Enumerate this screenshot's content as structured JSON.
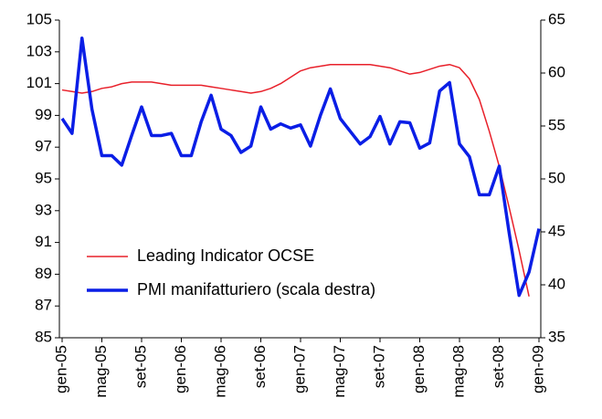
{
  "chart_data": {
    "type": "line",
    "categories": [
      "gen-05",
      null,
      null,
      null,
      "mag-05",
      null,
      null,
      null,
      "set-05",
      null,
      null,
      null,
      "gen-06",
      null,
      null,
      null,
      "mag-06",
      null,
      null,
      null,
      "set-06",
      null,
      null,
      null,
      "gen-07",
      null,
      null,
      null,
      "mag-07",
      null,
      null,
      null,
      "set-07",
      null,
      null,
      null,
      "gen-08",
      null,
      null,
      null,
      "mag-08",
      null,
      null,
      null,
      "set-08",
      null,
      null,
      null,
      "gen-09"
    ],
    "series": [
      {
        "name": "Leading Indicator OCSE",
        "color": "#e8202a",
        "axis": "y",
        "values": [
          100.6,
          100.5,
          100.4,
          100.5,
          100.7,
          100.8,
          101.0,
          101.1,
          101.1,
          101.1,
          101.0,
          100.9,
          100.9,
          100.9,
          100.9,
          100.8,
          100.7,
          100.6,
          100.5,
          100.4,
          100.5,
          100.7,
          101.0,
          101.4,
          101.8,
          102.0,
          102.1,
          102.2,
          102.2,
          102.2,
          102.2,
          102.2,
          102.1,
          102.0,
          101.8,
          101.6,
          101.7,
          101.9,
          102.1,
          102.2,
          102.0,
          101.3,
          100.0,
          98.0,
          95.8,
          93.2,
          90.5,
          87.6,
          null
        ]
      },
      {
        "name": "PMI manifatturiero (scala destra)",
        "color": "#0a1ee6",
        "axis": "y2",
        "values": [
          55.7,
          54.3,
          63.3,
          56.6,
          52.2,
          52.2,
          51.3,
          54.1,
          56.8,
          54.1,
          54.1,
          54.3,
          52.2,
          52.2,
          55.4,
          57.9,
          54.7,
          54.1,
          52.5,
          53.1,
          56.8,
          54.7,
          55.2,
          54.8,
          55.1,
          53.1,
          56.0,
          58.5,
          55.7,
          54.5,
          53.3,
          54.0,
          55.9,
          53.3,
          55.4,
          55.3,
          52.9,
          53.4,
          58.3,
          59.1,
          53.3,
          52.1,
          48.5,
          48.5,
          51.2,
          44.9,
          39.0,
          41.2,
          45.3
        ]
      }
    ],
    "ylim": [
      85,
      105
    ],
    "yticks": [
      85,
      87,
      89,
      91,
      93,
      95,
      97,
      99,
      101,
      103,
      105
    ],
    "y2lim": [
      35,
      65
    ],
    "y2ticks": [
      35,
      40,
      45,
      50,
      55,
      60,
      65
    ],
    "legend": "lower left",
    "grid": false
  }
}
